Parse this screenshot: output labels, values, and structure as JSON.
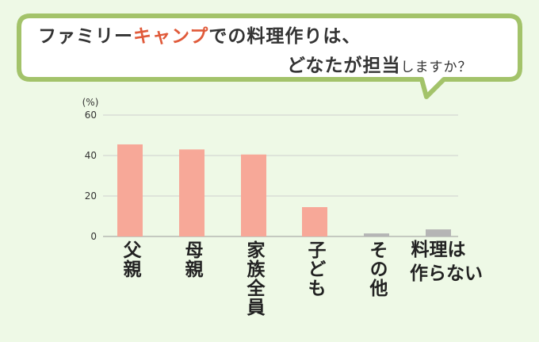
{
  "title": {
    "line1_a": "ファミリー",
    "line1_accent": "キャンプ",
    "line1_b": "での料理作りは、",
    "line2_a": "どなたが担当",
    "line2_small": "しますか？"
  },
  "chart_data": {
    "type": "bar",
    "unit_label": "(%)",
    "categories": [
      "父親",
      "母親",
      "家族全員",
      "子ども",
      "その他",
      "料理は作らない"
    ],
    "values": [
      45.5,
      43,
      40.5,
      14.5,
      1.5,
      3.5
    ],
    "bar_colors": [
      "#f7a898",
      "#f7a898",
      "#f7a898",
      "#f7a898",
      "#b5b5b5",
      "#b5b5b5"
    ],
    "yticks": [
      0,
      20,
      40,
      60
    ],
    "ylim": [
      0,
      60
    ],
    "grid": true
  },
  "colors": {
    "bubble_border": "#a3c36a",
    "accent": "#e05a3a",
    "background": "#eef9e6"
  }
}
